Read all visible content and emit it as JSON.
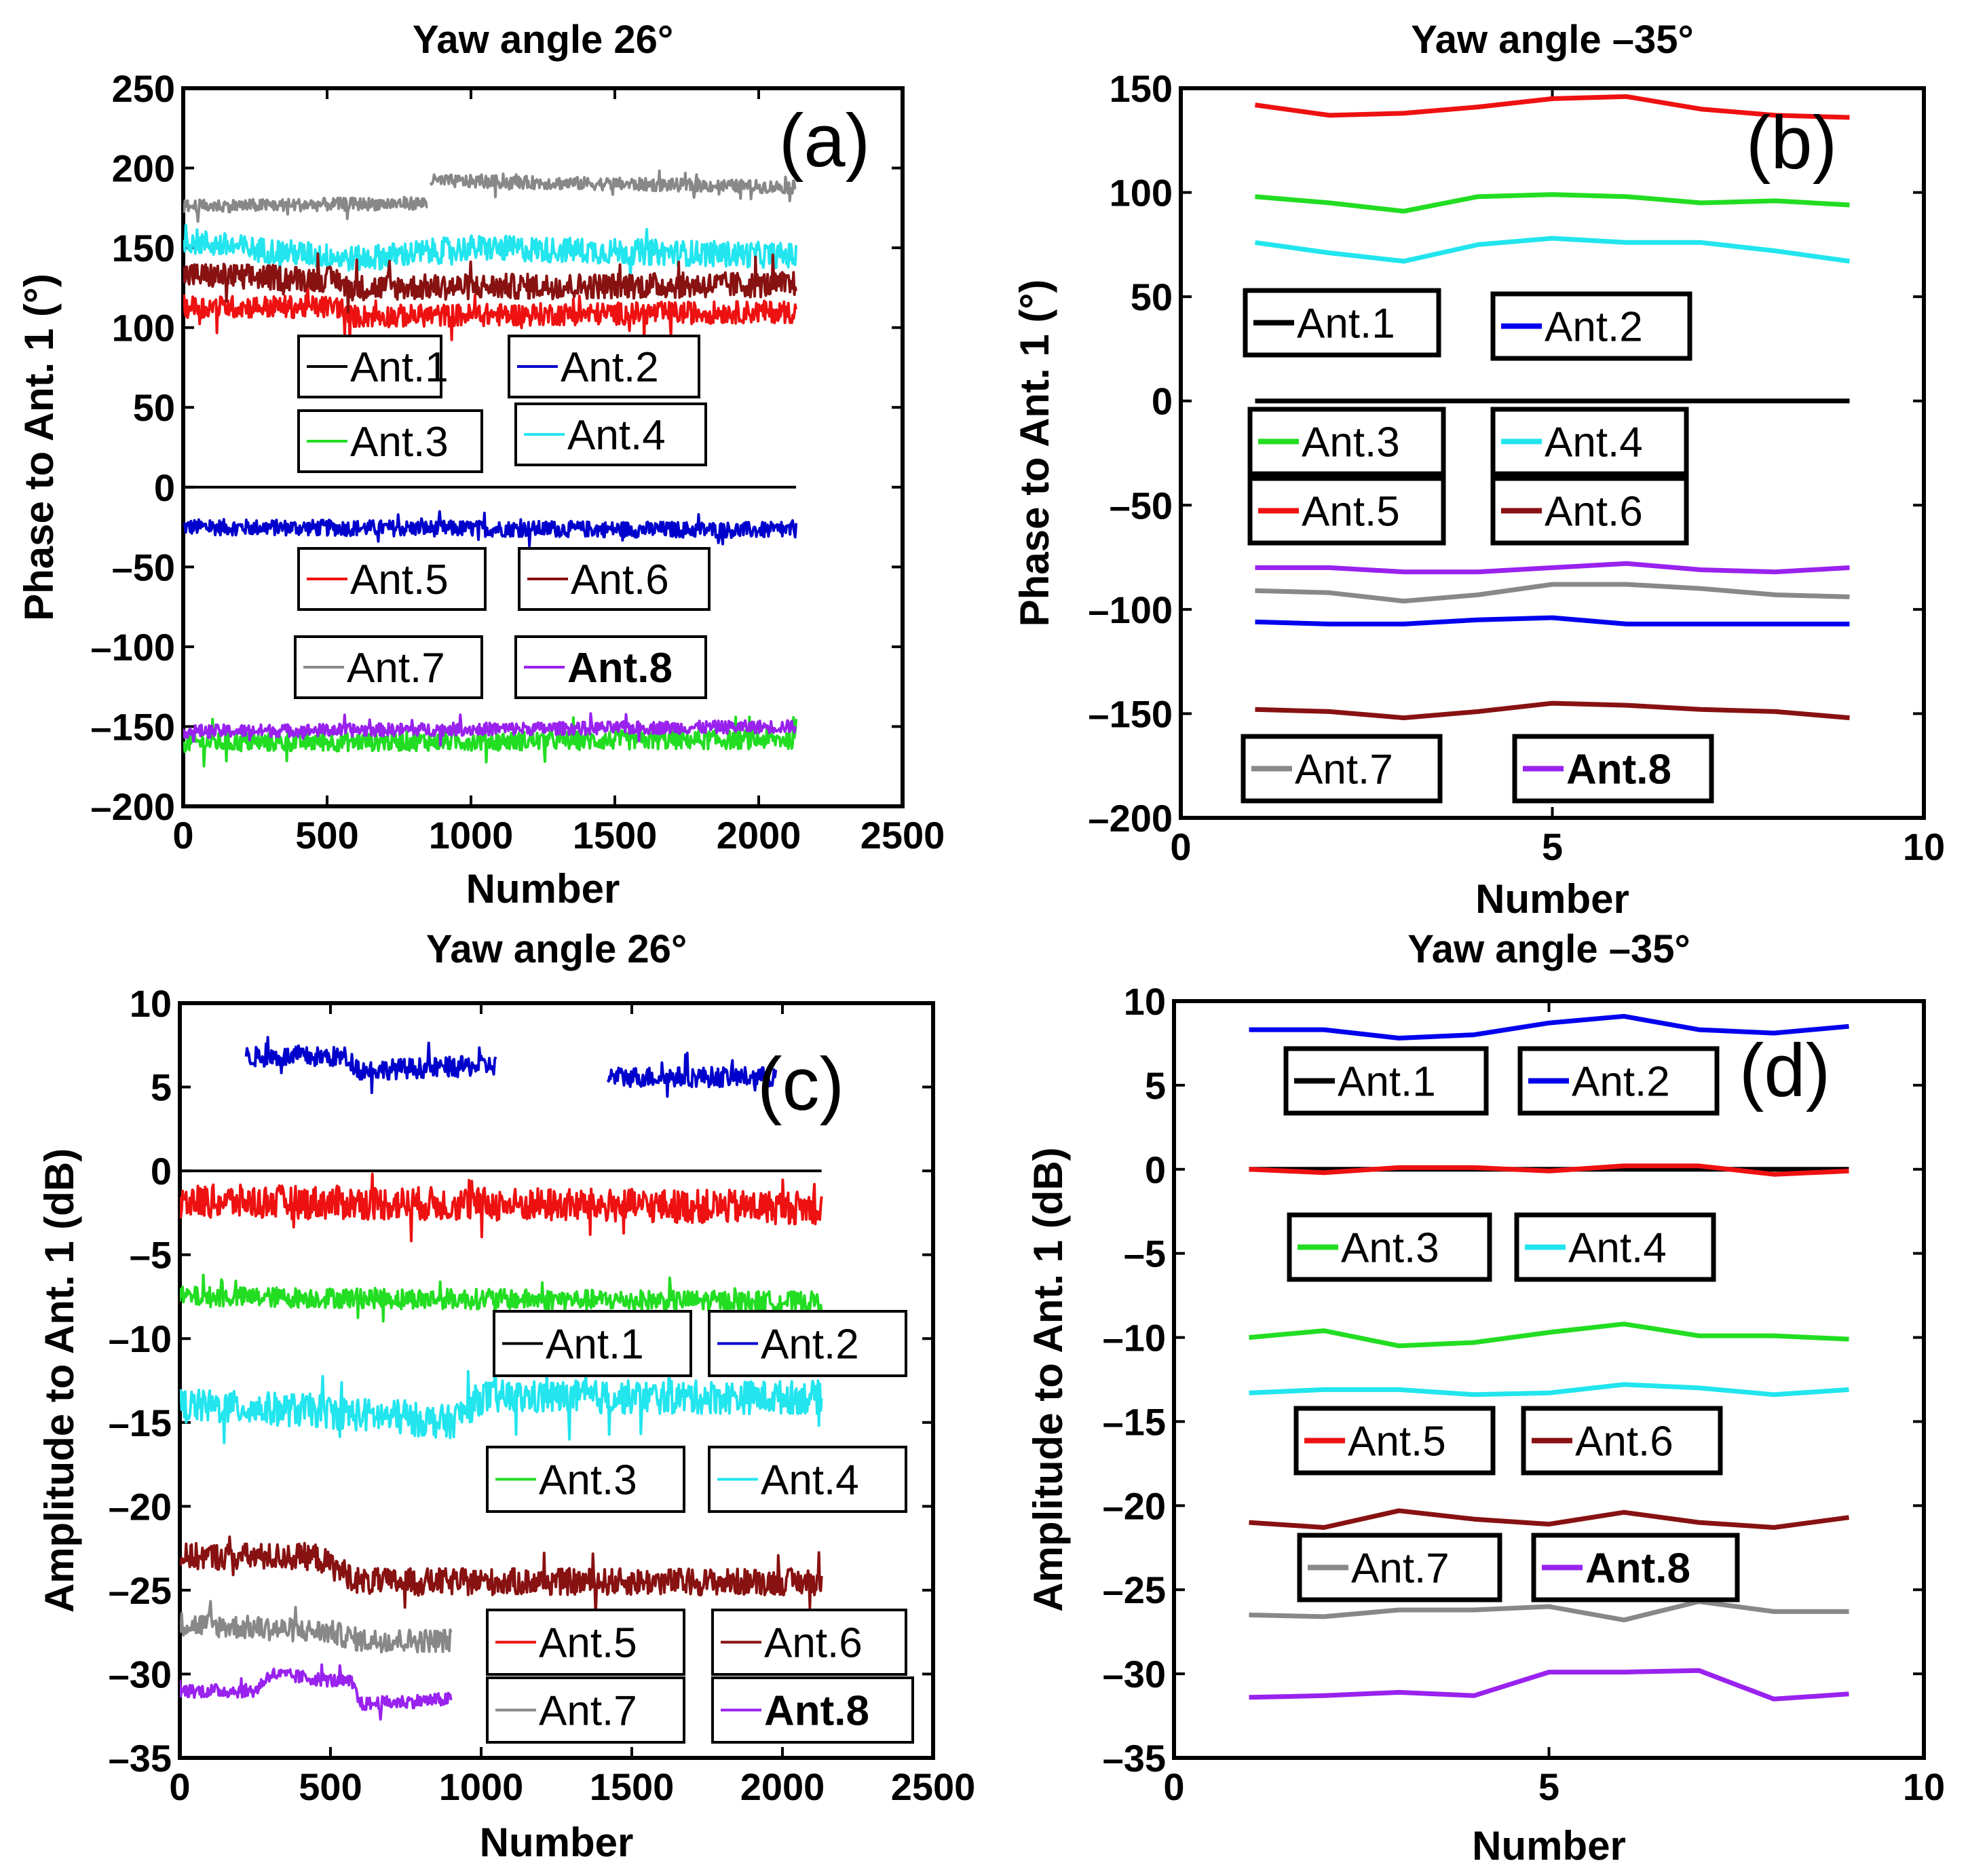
{
  "panels": [
    {
      "id": "a",
      "type": "line",
      "title": "Yaw angle  26°",
      "xlabel": "Number",
      "ylabel": "Phase to Ant. 1 (°)",
      "panel_label": "(a)",
      "xlim": [
        0,
        2500
      ],
      "ylim": [
        -200,
        250
      ],
      "xticks": [
        0,
        500,
        1000,
        1500,
        2000,
        2500
      ],
      "yticks": [
        250,
        200,
        150,
        100,
        50,
        0,
        -50,
        -100,
        -150,
        -200
      ],
      "series": [
        {
          "name": "Ant.1",
          "color": "#000000",
          "noise": 0,
          "segments": [
            {
              "x": [
                0,
                2130
              ],
              "y": [
                0,
                0
              ]
            }
          ]
        },
        {
          "name": "Ant.2",
          "color": "#0000cc",
          "noise": 5,
          "segments": [
            {
              "x": [
                0,
                2130
              ],
              "y": [
                -25,
                -27
              ]
            }
          ]
        },
        {
          "name": "Ant.3",
          "color": "#22dd22",
          "noise": 6,
          "segments": [
            {
              "x": [
                0,
                2130
              ],
              "y": [
                -160,
                -158
              ]
            }
          ]
        },
        {
          "name": "Ant.4",
          "color": "#22e5ee",
          "noise": 8,
          "segments": [
            {
              "x": [
                0,
                200,
                600,
                1000,
                2130
              ],
              "y": [
                155,
                150,
                143,
                150,
                145
              ]
            }
          ]
        },
        {
          "name": "Ant.5",
          "color": "#ee1111",
          "noise": 7,
          "segments": [
            {
              "x": [
                0,
                550,
                560,
                2130
              ],
              "y": [
                113,
                113,
                107,
                110
              ]
            }
          ]
        },
        {
          "name": "Ant.6",
          "color": "#881111",
          "noise": 8,
          "segments": [
            {
              "x": [
                0,
                550,
                560,
                2130
              ],
              "y": [
                133,
                130,
                125,
                127
              ]
            }
          ]
        },
        {
          "name": "Ant.7",
          "color": "#888888",
          "noise": 4,
          "segments": [
            {
              "x": [
                0,
                850
              ],
              "y": [
                176,
                178
              ]
            },
            {
              "x": [
                860,
                2130
              ],
              "y": [
                192,
                188
              ]
            }
          ]
        },
        {
          "name": "Ant.8",
          "color": "#9922ee",
          "noise": 4,
          "segments": [
            {
              "x": [
                0,
                2130
              ],
              "y": [
                -153,
                -150
              ]
            }
          ]
        }
      ],
      "legend": [
        "Ant.1",
        "Ant.2",
        "Ant.3",
        "Ant.4",
        "Ant.5",
        "Ant.6",
        "Ant.7",
        "Ant.8"
      ]
    },
    {
      "id": "b",
      "type": "line",
      "title": "Yaw angle –35°",
      "xlabel": "Number",
      "ylabel": "Phase to Ant. 1 (°)",
      "panel_label": "(b)",
      "xlim": [
        0,
        10
      ],
      "ylim": [
        -200,
        150
      ],
      "xticks": [
        0,
        5,
        10
      ],
      "yticks": [
        150,
        100,
        50,
        0,
        -50,
        -100,
        -150,
        -200
      ],
      "x": [
        1,
        2,
        3,
        4,
        5,
        6,
        7,
        8,
        9
      ],
      "series": [
        {
          "name": "Ant.1",
          "color": "#000000",
          "values": [
            0,
            0,
            0,
            0,
            0,
            0,
            0,
            0,
            0
          ]
        },
        {
          "name": "Ant.2",
          "color": "#0000ee",
          "values": [
            -106,
            -107,
            -107,
            -105,
            -104,
            -107,
            -107,
            -107,
            -107
          ]
        },
        {
          "name": "Ant.3",
          "color": "#22dd22",
          "values": [
            98,
            95,
            91,
            98,
            99,
            98,
            95,
            96,
            94
          ]
        },
        {
          "name": "Ant.4",
          "color": "#22e5ee",
          "values": [
            76,
            71,
            67,
            75,
            78,
            76,
            76,
            72,
            67
          ]
        },
        {
          "name": "Ant.5",
          "color": "#ee1111",
          "values": [
            142,
            137,
            138,
            141,
            145,
            146,
            140,
            137,
            136
          ]
        },
        {
          "name": "Ant.6",
          "color": "#881111",
          "values": [
            -148,
            -149,
            -152,
            -149,
            -145,
            -146,
            -148,
            -149,
            -152
          ]
        },
        {
          "name": "Ant.7",
          "color": "#888888",
          "values": [
            -91,
            -92,
            -96,
            -93,
            -88,
            -88,
            -90,
            -93,
            -94
          ]
        },
        {
          "name": "Ant.8",
          "color": "#9922ee",
          "values": [
            -80,
            -80,
            -82,
            -82,
            -80,
            -78,
            -81,
            -82,
            -80
          ]
        }
      ],
      "legend": [
        "Ant.1",
        "Ant.2",
        "Ant.3",
        "Ant.4",
        "Ant.5",
        "Ant.6",
        "Ant.7",
        "Ant.8"
      ]
    },
    {
      "id": "c",
      "type": "line",
      "title": "Yaw angle  26°",
      "xlabel": "Number",
      "ylabel": "Amplitude to Ant. 1 (dB)",
      "panel_label": "(c)",
      "xlim": [
        0,
        2500
      ],
      "ylim": [
        -35,
        10
      ],
      "xticks": [
        0,
        500,
        1000,
        1500,
        2000,
        2500
      ],
      "yticks": [
        10,
        5,
        0,
        -5,
        -10,
        -15,
        -20,
        -25,
        -30,
        -35
      ],
      "series": [
        {
          "name": "Ant.1",
          "color": "#000000",
          "noise": 0,
          "segments": [
            {
              "x": [
                0,
                2130
              ],
              "y": [
                0,
                0
              ]
            }
          ]
        },
        {
          "name": "Ant.2",
          "color": "#0000cc",
          "noise": 0.6,
          "segments": [
            {
              "x": [
                220,
                550,
                600,
                1050
              ],
              "y": [
                6.8,
                6.8,
                6.0,
                6.3
              ]
            },
            {
              "x": [
                1420,
                1980
              ],
              "y": [
                5.6,
                5.6
              ]
            }
          ]
        },
        {
          "name": "Ant.3",
          "color": "#22dd22",
          "noise": 0.6,
          "segments": [
            {
              "x": [
                0,
                2130
              ],
              "y": [
                -7.5,
                -7.8
              ]
            }
          ]
        },
        {
          "name": "Ant.4",
          "color": "#22e5ee",
          "noise": 1.0,
          "segments": [
            {
              "x": [
                0,
                450,
                900,
                1000,
                2130
              ],
              "y": [
                -14,
                -14.3,
                -15,
                -13.5,
                -13.5
              ]
            }
          ]
        },
        {
          "name": "Ant.5",
          "color": "#ee1111",
          "noise": 1.0,
          "segments": [
            {
              "x": [
                0,
                2130
              ],
              "y": [
                -1.8,
                -2.2
              ]
            }
          ]
        },
        {
          "name": "Ant.6",
          "color": "#881111",
          "noise": 0.8,
          "segments": [
            {
              "x": [
                0,
                450,
                600,
                2130
              ],
              "y": [
                -23,
                -23,
                -24.5,
                -24.5
              ]
            }
          ]
        },
        {
          "name": "Ant.7",
          "color": "#888888",
          "noise": 0.7,
          "segments": [
            {
              "x": [
                0,
                500,
                600,
                900
              ],
              "y": [
                -27,
                -27.5,
                -28,
                -28
              ]
            }
          ]
        },
        {
          "name": "Ant.8",
          "color": "#9922ee",
          "noise": 0.4,
          "segments": [
            {
              "x": [
                0,
                250,
                300,
                570,
                600,
                900
              ],
              "y": [
                -31,
                -31,
                -30,
                -30.5,
                -31.8,
                -31.5
              ]
            }
          ]
        }
      ],
      "legend": [
        "Ant.1",
        "Ant.2",
        "Ant.3",
        "Ant.4",
        "Ant.5",
        "Ant.6",
        "Ant.7",
        "Ant.8"
      ]
    },
    {
      "id": "d",
      "type": "line",
      "title": "Yaw angle –35°",
      "xlabel": "Number",
      "ylabel": "Amplitude to Ant. 1 (dB)",
      "panel_label": "(d)",
      "xlim": [
        0,
        10
      ],
      "ylim": [
        -35,
        10
      ],
      "xticks": [
        0,
        5,
        10
      ],
      "yticks": [
        10,
        5,
        0,
        -5,
        -10,
        -15,
        -20,
        -25,
        -30,
        -35
      ],
      "x": [
        1,
        2,
        3,
        4,
        5,
        6,
        7,
        8,
        9
      ],
      "series": [
        {
          "name": "Ant.1",
          "color": "#000000",
          "values": [
            0,
            0,
            0,
            0,
            0,
            0,
            0,
            0,
            0
          ]
        },
        {
          "name": "Ant.2",
          "color": "#0000ee",
          "values": [
            8.3,
            8.3,
            7.8,
            8.0,
            8.7,
            9.1,
            8.3,
            8.1,
            8.5
          ]
        },
        {
          "name": "Ant.3",
          "color": "#22dd22",
          "values": [
            -10,
            -9.6,
            -10.5,
            -10.3,
            -9.7,
            -9.2,
            -9.9,
            -9.9,
            -10.1
          ]
        },
        {
          "name": "Ant.4",
          "color": "#22e5ee",
          "values": [
            -13.3,
            -13.1,
            -13.1,
            -13.4,
            -13.3,
            -12.8,
            -13.0,
            -13.4,
            -13.1
          ]
        },
        {
          "name": "Ant.5",
          "color": "#ee1111",
          "values": [
            0,
            -0.2,
            0.1,
            0.1,
            -0.1,
            0.2,
            0.2,
            -0.3,
            -0.1
          ]
        },
        {
          "name": "Ant.6",
          "color": "#881111",
          "values": [
            -21,
            -21.3,
            -20.3,
            -20.8,
            -21.1,
            -20.4,
            -21.0,
            -21.3,
            -20.7
          ]
        },
        {
          "name": "Ant.7",
          "color": "#888888",
          "values": [
            -26.5,
            -26.6,
            -26.2,
            -26.2,
            -26.0,
            -26.8,
            -25.7,
            -26.3,
            -26.3
          ]
        },
        {
          "name": "Ant.8",
          "color": "#9922ee",
          "values": [
            -31.4,
            -31.3,
            -31.1,
            -31.3,
            -29.9,
            -29.9,
            -29.8,
            -31.5,
            -31.2
          ]
        }
      ],
      "legend": [
        "Ant.1",
        "Ant.2",
        "Ant.3",
        "Ant.4",
        "Ant.5",
        "Ant.6",
        "Ant.7",
        "Ant.8"
      ]
    }
  ]
}
